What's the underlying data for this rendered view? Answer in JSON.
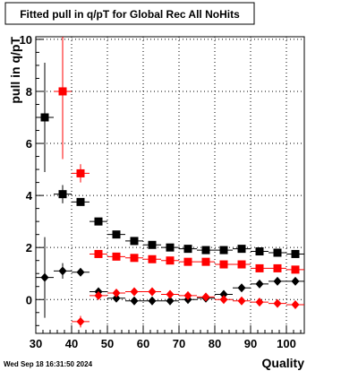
{
  "chart_data": {
    "type": "scatter",
    "title": "Fitted pull in q/pT for Global Rec All NoHits",
    "xlabel": "Quality",
    "ylabel": "pull in q/pT",
    "xlim": [
      30,
      105
    ],
    "ylim": [
      -1.3,
      10.1
    ],
    "x_ticks": [
      30,
      40,
      50,
      60,
      70,
      80,
      90,
      100
    ],
    "y_ticks": [
      0,
      2,
      4,
      6,
      8,
      10
    ],
    "grid": true,
    "x_bin_halfwidth": 2.5,
    "series": [
      {
        "marker": "square",
        "color": "#000000",
        "points": [
          {
            "x": 32.5,
            "y": 7.0,
            "yerr": 2.1
          },
          {
            "x": 37.5,
            "y": 4.05,
            "yerr": 0.35
          },
          {
            "x": 42.5,
            "y": 3.75,
            "yerr": 0.12
          },
          {
            "x": 47.5,
            "y": 3.0,
            "yerr": 0.06
          },
          {
            "x": 52.5,
            "y": 2.5,
            "yerr": 0.05
          },
          {
            "x": 57.5,
            "y": 2.25,
            "yerr": 0.04
          },
          {
            "x": 62.5,
            "y": 2.1,
            "yerr": 0.04
          },
          {
            "x": 67.5,
            "y": 2.0,
            "yerr": 0.04
          },
          {
            "x": 72.5,
            "y": 1.95,
            "yerr": 0.04
          },
          {
            "x": 77.5,
            "y": 1.9,
            "yerr": 0.04
          },
          {
            "x": 82.5,
            "y": 1.9,
            "yerr": 0.04
          },
          {
            "x": 87.5,
            "y": 1.95,
            "yerr": 0.04
          },
          {
            "x": 92.5,
            "y": 1.85,
            "yerr": 0.04
          },
          {
            "x": 97.5,
            "y": 1.8,
            "yerr": 0.04
          },
          {
            "x": 102.5,
            "y": 1.75,
            "yerr": 0.05
          }
        ]
      },
      {
        "marker": "square",
        "color": "#ff0000",
        "points": [
          {
            "x": 37.5,
            "y": 8.0,
            "yerr": 2.6
          },
          {
            "x": 42.5,
            "y": 4.85,
            "yerr": 0.35
          },
          {
            "x": 47.5,
            "y": 1.75,
            "yerr": 0.08
          },
          {
            "x": 52.5,
            "y": 1.65,
            "yerr": 0.05
          },
          {
            "x": 57.5,
            "y": 1.6,
            "yerr": 0.04
          },
          {
            "x": 62.5,
            "y": 1.55,
            "yerr": 0.04
          },
          {
            "x": 67.5,
            "y": 1.5,
            "yerr": 0.04
          },
          {
            "x": 72.5,
            "y": 1.45,
            "yerr": 0.04
          },
          {
            "x": 77.5,
            "y": 1.45,
            "yerr": 0.04
          },
          {
            "x": 82.5,
            "y": 1.35,
            "yerr": 0.04
          },
          {
            "x": 87.5,
            "y": 1.35,
            "yerr": 0.04
          },
          {
            "x": 92.5,
            "y": 1.2,
            "yerr": 0.04
          },
          {
            "x": 97.5,
            "y": 1.2,
            "yerr": 0.04
          },
          {
            "x": 102.5,
            "y": 1.15,
            "yerr": 0.05
          }
        ]
      },
      {
        "marker": "diamond",
        "color": "#000000",
        "points": [
          {
            "x": 32.5,
            "y": 0.85,
            "yerr": 1.55
          },
          {
            "x": 37.5,
            "y": 1.1,
            "yerr": 0.3
          },
          {
            "x": 42.5,
            "y": 1.05,
            "yerr": 0.1
          },
          {
            "x": 47.5,
            "y": 0.3,
            "yerr": 0.05
          },
          {
            "x": 52.5,
            "y": 0.05,
            "yerr": 0.04
          },
          {
            "x": 57.5,
            "y": -0.05,
            "yerr": 0.04
          },
          {
            "x": 62.5,
            "y": -0.05,
            "yerr": 0.04
          },
          {
            "x": 67.5,
            "y": -0.05,
            "yerr": 0.04
          },
          {
            "x": 72.5,
            "y": 0.0,
            "yerr": 0.04
          },
          {
            "x": 77.5,
            "y": 0.05,
            "yerr": 0.04
          },
          {
            "x": 82.5,
            "y": 0.2,
            "yerr": 0.04
          },
          {
            "x": 87.5,
            "y": 0.45,
            "yerr": 0.04
          },
          {
            "x": 92.5,
            "y": 0.6,
            "yerr": 0.04
          },
          {
            "x": 97.5,
            "y": 0.7,
            "yerr": 0.04
          },
          {
            "x": 102.5,
            "y": 0.7,
            "yerr": 0.05
          }
        ]
      },
      {
        "marker": "diamond",
        "color": "#ff0000",
        "points": [
          {
            "x": 42.5,
            "y": -0.85,
            "yerr": 0.22
          },
          {
            "x": 47.5,
            "y": 0.15,
            "yerr": 0.05
          },
          {
            "x": 52.5,
            "y": 0.25,
            "yerr": 0.04
          },
          {
            "x": 57.5,
            "y": 0.3,
            "yerr": 0.04
          },
          {
            "x": 62.5,
            "y": 0.3,
            "yerr": 0.04
          },
          {
            "x": 67.5,
            "y": 0.2,
            "yerr": 0.04
          },
          {
            "x": 72.5,
            "y": 0.15,
            "yerr": 0.04
          },
          {
            "x": 77.5,
            "y": 0.1,
            "yerr": 0.04
          },
          {
            "x": 82.5,
            "y": 0.0,
            "yerr": 0.04
          },
          {
            "x": 87.5,
            "y": -0.05,
            "yerr": 0.04
          },
          {
            "x": 92.5,
            "y": -0.1,
            "yerr": 0.04
          },
          {
            "x": 97.5,
            "y": -0.15,
            "yerr": 0.04
          },
          {
            "x": 102.5,
            "y": -0.2,
            "yerr": 0.05
          }
        ]
      }
    ]
  },
  "footer": {
    "timestamp": "Wed Sep 18 16:31:50 2024"
  }
}
